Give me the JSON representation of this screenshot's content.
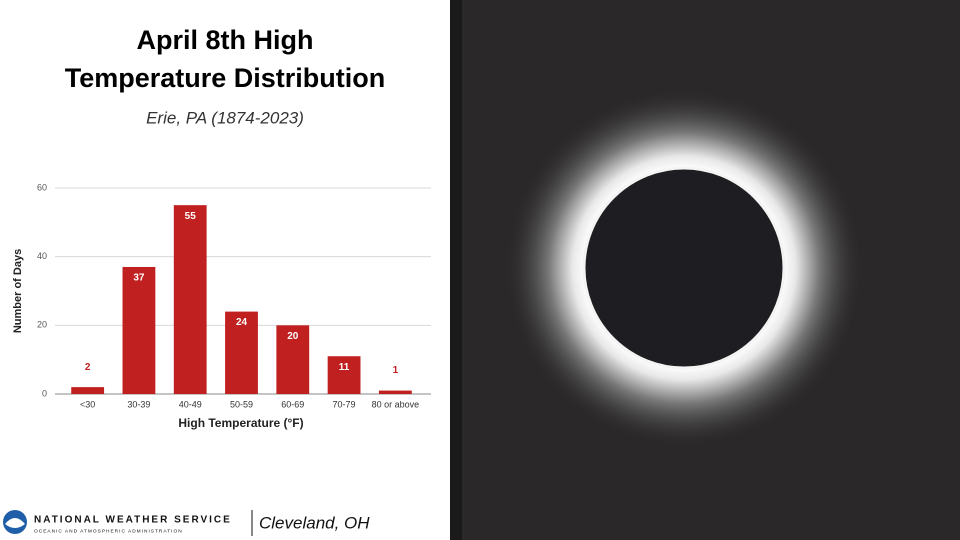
{
  "chart_data": {
    "type": "bar",
    "title": [
      "April 8th High",
      "Temperature Distribution"
    ],
    "subtitle": "Erie, PA (1874-2023)",
    "x_label": "High Temperature (°F)",
    "y_label": "Number of Days",
    "categories": [
      "<30",
      "30-39",
      "40-49",
      "50-59",
      "60-69",
      "70-79",
      "80 or above"
    ],
    "values": [
      2,
      37,
      55,
      24,
      20,
      11,
      1
    ],
    "color": "#c0201f",
    "ylim": [
      0,
      60
    ],
    "yticks": [
      0,
      20,
      40,
      60
    ],
    "grid": true
  },
  "footer": {
    "agency": "NATIONAL WEATHER SERVICE",
    "agency_sub": "OCEANIC AND ATMOSPHERIC ADMINISTRATION",
    "office": "Cleveland, OH"
  }
}
